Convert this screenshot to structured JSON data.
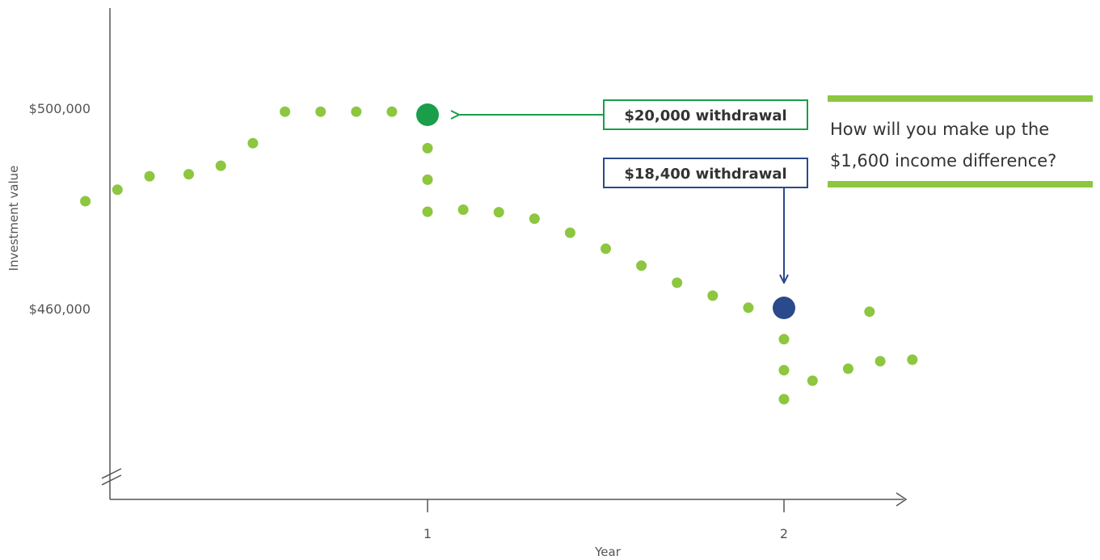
{
  "chart_data": {
    "type": "scatter",
    "xlabel": "Year",
    "ylabel": "Investment value",
    "x_ticks": [
      {
        "value": 1,
        "label": "1"
      },
      {
        "value": 2,
        "label": "2"
      }
    ],
    "y_ticks": [
      {
        "value": 500000,
        "label": "$500,000"
      },
      {
        "value": 460000,
        "label": "$460,000"
      }
    ],
    "xlim": [
      0.0,
      2.35
    ],
    "ylim": [
      420000,
      520000
    ],
    "y_axis_break": true,
    "colors": {
      "points": "#8dc63f",
      "withdrawal_1": "#1a9e4a",
      "withdrawal_2": "#2b4a8b",
      "axis": "#555555",
      "question_bars": "#8dc63f"
    },
    "points": [
      {
        "x": 0.04,
        "y": 481900
      },
      {
        "x": 0.13,
        "y": 484200
      },
      {
        "x": 0.22,
        "y": 486900
      },
      {
        "x": 0.33,
        "y": 487300
      },
      {
        "x": 0.42,
        "y": 489000
      },
      {
        "x": 0.51,
        "y": 493500
      },
      {
        "x": 0.6,
        "y": 499800
      },
      {
        "x": 0.7,
        "y": 499800
      },
      {
        "x": 0.8,
        "y": 499800
      },
      {
        "x": 0.9,
        "y": 499800
      },
      {
        "x": 1.0,
        "y": 492500
      },
      {
        "x": 1.0,
        "y": 486200
      },
      {
        "x": 1.0,
        "y": 479800
      },
      {
        "x": 1.1,
        "y": 480200
      },
      {
        "x": 1.2,
        "y": 479700
      },
      {
        "x": 1.3,
        "y": 478400
      },
      {
        "x": 1.4,
        "y": 475600
      },
      {
        "x": 1.5,
        "y": 472400
      },
      {
        "x": 1.6,
        "y": 469000
      },
      {
        "x": 1.7,
        "y": 465600
      },
      {
        "x": 1.8,
        "y": 463000
      },
      {
        "x": 1.9,
        "y": 460600
      },
      {
        "x": 1.99,
        "y": 459600
      },
      {
        "x": 2.24,
        "y": 459800
      },
      {
        "x": 2.0,
        "y": 454300
      },
      {
        "x": 2.0,
        "y": 448100
      },
      {
        "x": 2.0,
        "y": 442300
      },
      {
        "x": 2.08,
        "y": 446000
      },
      {
        "x": 2.18,
        "y": 448400
      },
      {
        "x": 2.27,
        "y": 449900
      },
      {
        "x": 2.36,
        "y": 450200
      }
    ],
    "withdrawals": [
      {
        "x": 1.0,
        "y": 499300,
        "label": "$20,000 withdrawal"
      },
      {
        "x": 2.0,
        "y": 459900,
        "label": "$18,400 withdrawal"
      }
    ],
    "question": {
      "line1": "How will you make up the",
      "line2": "$1,600 income difference?"
    }
  }
}
